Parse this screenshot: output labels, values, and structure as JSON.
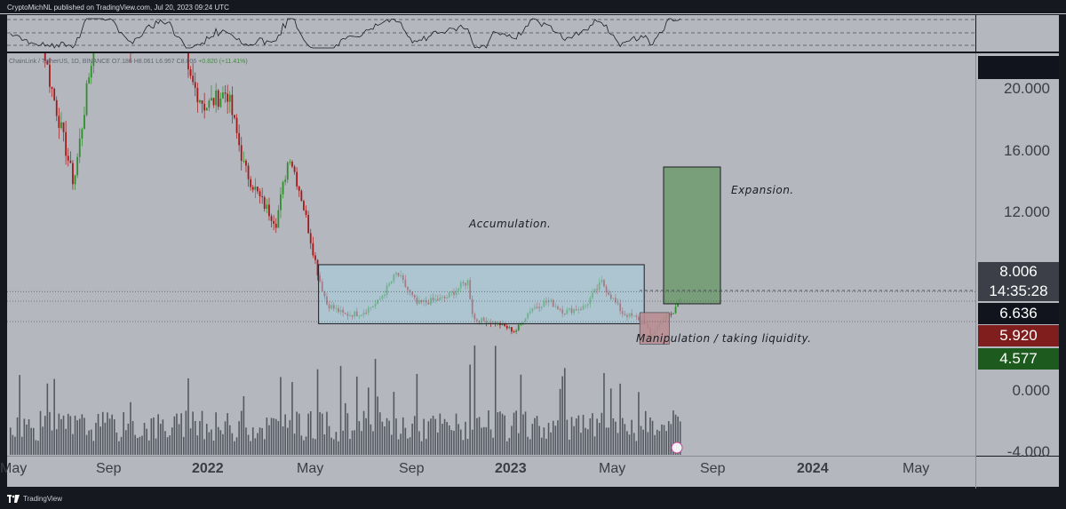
{
  "publish_line": "CryptoMichNL published on TradingView.com, Jul 20, 2023 09:24 UTC",
  "footer_brand": "TradingView",
  "legend": {
    "symbol": "ChainLink / TetherUS, 1D, BINANCE",
    "ohlc": "O7.186 H8.061 L6.957 C8.006",
    "change": "+0.820 (+11.41%)"
  },
  "annotations": {
    "accumulation": "Accumulation.",
    "expansion": "Expansion.",
    "manipulation": "Manipulation / taking liquidity."
  },
  "tags": {
    "current_price": "8.006",
    "countdown": "14:35:28",
    "level_1": "6.636",
    "level_2": "5.920",
    "level_3": "4.577"
  },
  "colors": {
    "background": "#b4b7be",
    "bull": "#2e8f2c",
    "bear": "#a31a1a",
    "volume": "#555861",
    "box_fill": "#a8cfe0",
    "expansion_fill": "#6f9a6f",
    "manip_fill": "#b98e94",
    "tag_dark": "#11141c",
    "tag_red": "#801e1e",
    "tag_green": "#1c5a1e"
  },
  "chart_data": {
    "type": "candlestick",
    "instrument": "LINK/USDT",
    "price_axis": {
      "ticks": [
        20,
        16,
        12,
        0,
        -4
      ],
      "tick_labels": [
        "20.000",
        "16.000",
        "12.000",
        "0.000",
        "-4.000"
      ]
    },
    "time_axis": {
      "ticks": [
        "May",
        "Sep",
        "2022",
        "May",
        "Sep",
        "2023",
        "May",
        "Sep",
        "2024",
        "May"
      ],
      "bold": [
        false,
        false,
        true,
        false,
        false,
        true,
        false,
        false,
        true,
        false
      ]
    },
    "close_path": [
      [
        "2021-05-05",
        36
      ],
      [
        "2021-05-25",
        30
      ],
      [
        "2021-06-20",
        22
      ],
      [
        "2021-07-20",
        15
      ],
      [
        "2021-08-10",
        23
      ],
      [
        "2021-09-05",
        30
      ],
      [
        "2021-09-25",
        24
      ],
      [
        "2021-10-20",
        27
      ],
      [
        "2021-11-10",
        33
      ],
      [
        "2021-12-04",
        22
      ],
      [
        "2021-12-25",
        20
      ],
      [
        "2022-01-20",
        21
      ],
      [
        "2022-02-10",
        16
      ],
      [
        "2022-03-01",
        14
      ],
      [
        "2022-03-20",
        12.5
      ],
      [
        "2022-04-05",
        17
      ],
      [
        "2022-04-20",
        14
      ],
      [
        "2022-05-10",
        9
      ],
      [
        "2022-05-20",
        7.2
      ],
      [
        "2022-06-10",
        6.5
      ],
      [
        "2022-06-30",
        6.6
      ],
      [
        "2022-07-20",
        7.3
      ],
      [
        "2022-08-12",
        9.2
      ],
      [
        "2022-09-05",
        7.2
      ],
      [
        "2022-10-10",
        7.6
      ],
      [
        "2022-11-05",
        8.7
      ],
      [
        "2022-11-12",
        6.2
      ],
      [
        "2022-12-10",
        6.0
      ],
      [
        "2023-01-01",
        5.4
      ],
      [
        "2023-01-20",
        6.9
      ],
      [
        "2023-02-10",
        7.4
      ],
      [
        "2023-03-01",
        6.7
      ],
      [
        "2023-03-25",
        7.0
      ],
      [
        "2023-04-15",
        8.6
      ],
      [
        "2023-05-10",
        6.6
      ],
      [
        "2023-06-05",
        6.1
      ],
      [
        "2023-06-12",
        5.1
      ],
      [
        "2023-06-28",
        6.3
      ],
      [
        "2023-07-10",
        6.6
      ],
      [
        "2023-07-20",
        8.0
      ]
    ],
    "levels": [
      {
        "label": "8.006",
        "value": 8.006
      },
      {
        "label": "6.636",
        "value": 6.636
      },
      {
        "label": "5.920",
        "value": 5.92
      },
      {
        "label": "4.577",
        "value": 4.577
      }
    ],
    "zones": [
      {
        "name": "Accumulation.",
        "from": "2022-05-10",
        "to": "2023-06-05",
        "low": 5.92,
        "high": 9.75
      },
      {
        "name": "Manipulation / taking liquidity.",
        "from": "2023-06-05",
        "to": "2023-07-05",
        "low": 4.6,
        "high": 5.95
      },
      {
        "name": "Expansion.",
        "from": "2023-07-05",
        "to": "2023-09-05",
        "low": 5.8,
        "high": 14.9
      }
    ]
  }
}
